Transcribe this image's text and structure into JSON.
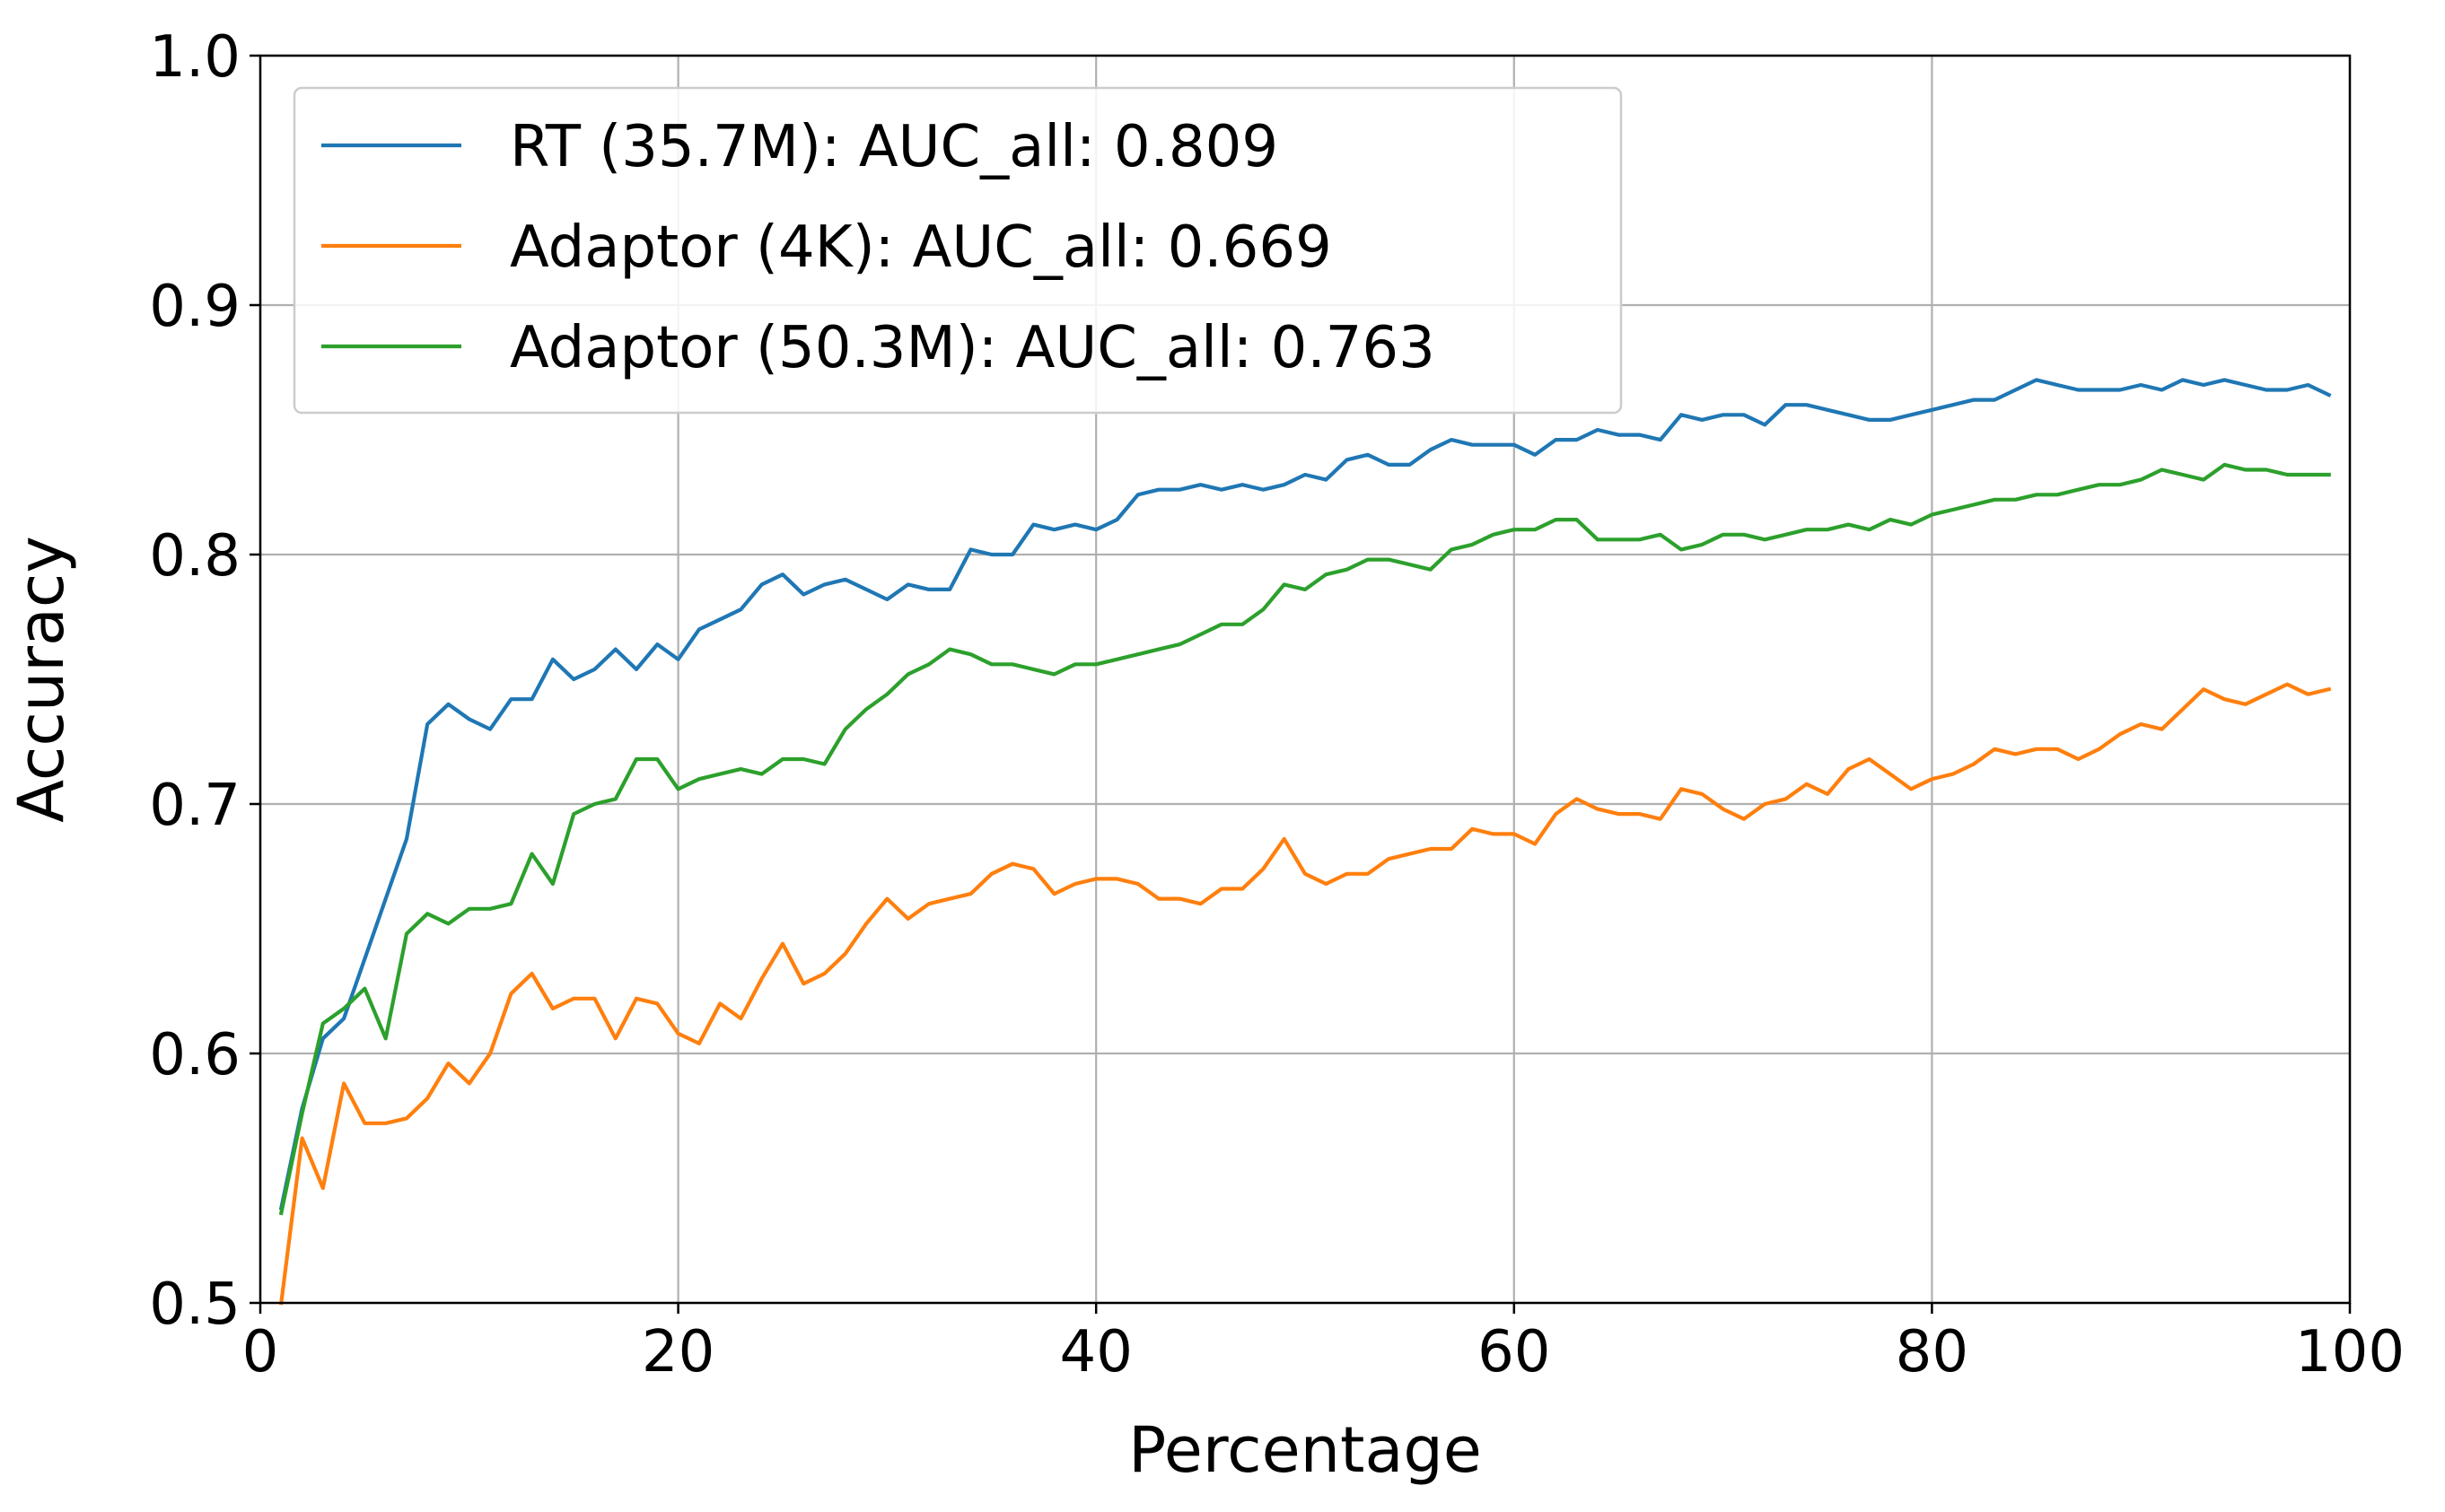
{
  "chart_data": {
    "type": "line",
    "title": "",
    "xlabel": "Percentage",
    "ylabel": "Accuracy",
    "xlim": [
      0,
      100
    ],
    "ylim": [
      0.5,
      1.0
    ],
    "xticks": [
      0,
      20,
      40,
      60,
      80,
      100
    ],
    "xtick_labels": [
      "0",
      "20",
      "40",
      "60",
      "80",
      "100"
    ],
    "yticks": [
      0.5,
      0.6,
      0.7,
      0.8,
      0.9,
      1.0
    ],
    "ytick_labels": [
      "0.5",
      "0.6",
      "0.7",
      "0.8",
      "0.9",
      "1.0"
    ],
    "grid": true,
    "legend_position": "upper-left",
    "x": [
      1,
      2,
      3,
      4,
      5,
      6,
      7,
      8,
      9,
      10,
      11,
      12,
      13,
      14,
      15,
      16,
      17,
      18,
      19,
      20,
      21,
      22,
      23,
      24,
      25,
      26,
      27,
      28,
      29,
      30,
      31,
      32,
      33,
      34,
      35,
      36,
      37,
      38,
      39,
      40,
      41,
      42,
      43,
      44,
      45,
      46,
      47,
      48,
      49,
      50,
      51,
      52,
      53,
      54,
      55,
      56,
      57,
      58,
      59,
      60,
      61,
      62,
      63,
      64,
      65,
      66,
      67,
      68,
      69,
      70,
      71,
      72,
      73,
      74,
      75,
      76,
      77,
      78,
      79,
      80,
      81,
      82,
      83,
      84,
      85,
      86,
      87,
      88,
      89,
      90,
      91,
      92,
      93,
      94,
      95,
      96,
      97,
      98,
      99
    ],
    "series": [
      {
        "name": "RT (35.7M): AUC_all: 0.809",
        "color": "#1f77b4",
        "values": [
          0.538,
          0.578,
          0.606,
          0.614,
          0.638,
          0.662,
          0.686,
          0.732,
          0.74,
          0.734,
          0.73,
          0.742,
          0.742,
          0.758,
          0.75,
          0.754,
          0.762,
          0.754,
          0.764,
          0.758,
          0.77,
          0.774,
          0.778,
          0.788,
          0.792,
          0.784,
          0.788,
          0.79,
          0.786,
          0.782,
          0.788,
          0.786,
          0.786,
          0.802,
          0.8,
          0.8,
          0.812,
          0.81,
          0.812,
          0.81,
          0.814,
          0.824,
          0.826,
          0.826,
          0.828,
          0.826,
          0.828,
          0.826,
          0.828,
          0.832,
          0.83,
          0.838,
          0.84,
          0.836,
          0.836,
          0.842,
          0.846,
          0.844,
          0.844,
          0.844,
          0.84,
          0.846,
          0.846,
          0.85,
          0.848,
          0.848,
          0.846,
          0.856,
          0.854,
          0.856,
          0.856,
          0.852,
          0.86,
          0.86,
          0.858,
          0.856,
          0.854,
          0.854,
          0.856,
          0.858,
          0.86,
          0.862,
          0.862,
          0.866,
          0.87,
          0.868,
          0.866,
          0.866,
          0.866,
          0.868,
          0.866,
          0.87,
          0.868,
          0.87,
          0.868,
          0.866,
          0.866,
          0.868,
          0.864
        ]
      },
      {
        "name": "Adaptor (4K): AUC_all: 0.669",
        "color": "#ff7f0e",
        "values": [
          0.5,
          0.566,
          0.546,
          0.588,
          0.572,
          0.572,
          0.574,
          0.582,
          0.596,
          0.588,
          0.6,
          0.624,
          0.632,
          0.618,
          0.622,
          0.622,
          0.606,
          0.622,
          0.62,
          0.608,
          0.604,
          0.62,
          0.614,
          0.63,
          0.644,
          0.628,
          0.632,
          0.64,
          0.652,
          0.662,
          0.654,
          0.66,
          0.662,
          0.664,
          0.672,
          0.676,
          0.674,
          0.664,
          0.668,
          0.67,
          0.67,
          0.668,
          0.662,
          0.662,
          0.66,
          0.666,
          0.666,
          0.674,
          0.686,
          0.672,
          0.668,
          0.672,
          0.672,
          0.678,
          0.68,
          0.682,
          0.682,
          0.69,
          0.688,
          0.688,
          0.684,
          0.696,
          0.702,
          0.698,
          0.696,
          0.696,
          0.694,
          0.706,
          0.704,
          0.698,
          0.694,
          0.7,
          0.702,
          0.708,
          0.704,
          0.714,
          0.718,
          0.712,
          0.706,
          0.71,
          0.712,
          0.716,
          0.722,
          0.72,
          0.722,
          0.722,
          0.718,
          0.722,
          0.728,
          0.732,
          0.73,
          0.738,
          0.746,
          0.742,
          0.74,
          0.744,
          0.748,
          0.744,
          0.746
        ]
      },
      {
        "name": "Adaptor (50.3M): AUC_all: 0.763",
        "color": "#2ca02c",
        "values": [
          0.536,
          0.576,
          0.612,
          0.618,
          0.626,
          0.606,
          0.648,
          0.656,
          0.652,
          0.658,
          0.658,
          0.66,
          0.68,
          0.668,
          0.696,
          0.7,
          0.702,
          0.718,
          0.718,
          0.706,
          0.71,
          0.712,
          0.714,
          0.712,
          0.718,
          0.718,
          0.716,
          0.73,
          0.738,
          0.744,
          0.752,
          0.756,
          0.762,
          0.76,
          0.756,
          0.756,
          0.754,
          0.752,
          0.756,
          0.756,
          0.758,
          0.76,
          0.762,
          0.764,
          0.768,
          0.772,
          0.772,
          0.778,
          0.788,
          0.786,
          0.792,
          0.794,
          0.798,
          0.798,
          0.796,
          0.794,
          0.802,
          0.804,
          0.808,
          0.81,
          0.81,
          0.814,
          0.814,
          0.806,
          0.806,
          0.806,
          0.808,
          0.802,
          0.804,
          0.808,
          0.808,
          0.806,
          0.808,
          0.81,
          0.81,
          0.812,
          0.81,
          0.814,
          0.812,
          0.816,
          0.818,
          0.82,
          0.822,
          0.822,
          0.824,
          0.824,
          0.826,
          0.828,
          0.828,
          0.83,
          0.834,
          0.832,
          0.83,
          0.836,
          0.834,
          0.834,
          0.832,
          0.832,
          0.832
        ]
      }
    ]
  }
}
